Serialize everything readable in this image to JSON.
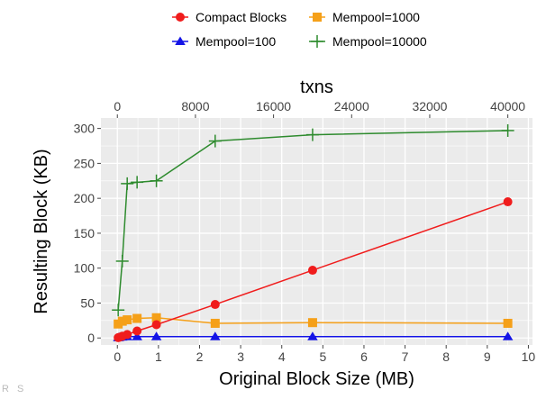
{
  "chart_data": {
    "type": "line",
    "xlabel": "Original Block Size (MB)",
    "ylabel": "Resulting Block (KB)",
    "x2label": "txns",
    "xlim": [
      -0.4,
      10.1
    ],
    "ylim": [
      -10,
      315
    ],
    "x_ticks": [
      0,
      1,
      2,
      3,
      4,
      5,
      6,
      7,
      8,
      9,
      10
    ],
    "y_ticks": [
      0,
      50,
      100,
      150,
      200,
      250,
      300
    ],
    "x2_ticks": [
      0,
      8000,
      16000,
      24000,
      32000,
      40000
    ],
    "x2_per_x": 4210.5,
    "grid": true,
    "legend_position": "top",
    "series": [
      {
        "name": "Compact Blocks",
        "marker": "circle",
        "color": "#f01c1c",
        "x": [
          0.02,
          0.05,
          0.12,
          0.24,
          0.48,
          0.95,
          2.38,
          4.75,
          9.5
        ],
        "y": [
          0.5,
          1,
          2.5,
          5,
          10,
          19,
          48,
          97,
          195
        ]
      },
      {
        "name": "Mempool=100",
        "marker": "triangle",
        "color": "#1414e6",
        "x": [
          0.02,
          0.05,
          0.12,
          0.24,
          0.48,
          0.95,
          2.38,
          4.75,
          9.5
        ],
        "y": [
          0.5,
          1,
          1.5,
          2,
          2,
          2,
          2,
          2,
          2
        ]
      },
      {
        "name": "Mempool=1000",
        "marker": "square",
        "color": "#f5a019",
        "x": [
          0.02,
          0.12,
          0.24,
          0.48,
          0.95,
          2.38,
          4.75,
          9.5
        ],
        "y": [
          20,
          24,
          26,
          28,
          29,
          21,
          22,
          21
        ]
      },
      {
        "name": "Mempool=10000",
        "marker": "plus",
        "color": "#2e8b2e",
        "x": [
          0.02,
          0.12,
          0.24,
          0.48,
          0.95,
          2.38,
          4.75,
          9.5
        ],
        "y": [
          40,
          110,
          221,
          223,
          225,
          282,
          291,
          297
        ]
      }
    ]
  },
  "corner_text": "R S"
}
